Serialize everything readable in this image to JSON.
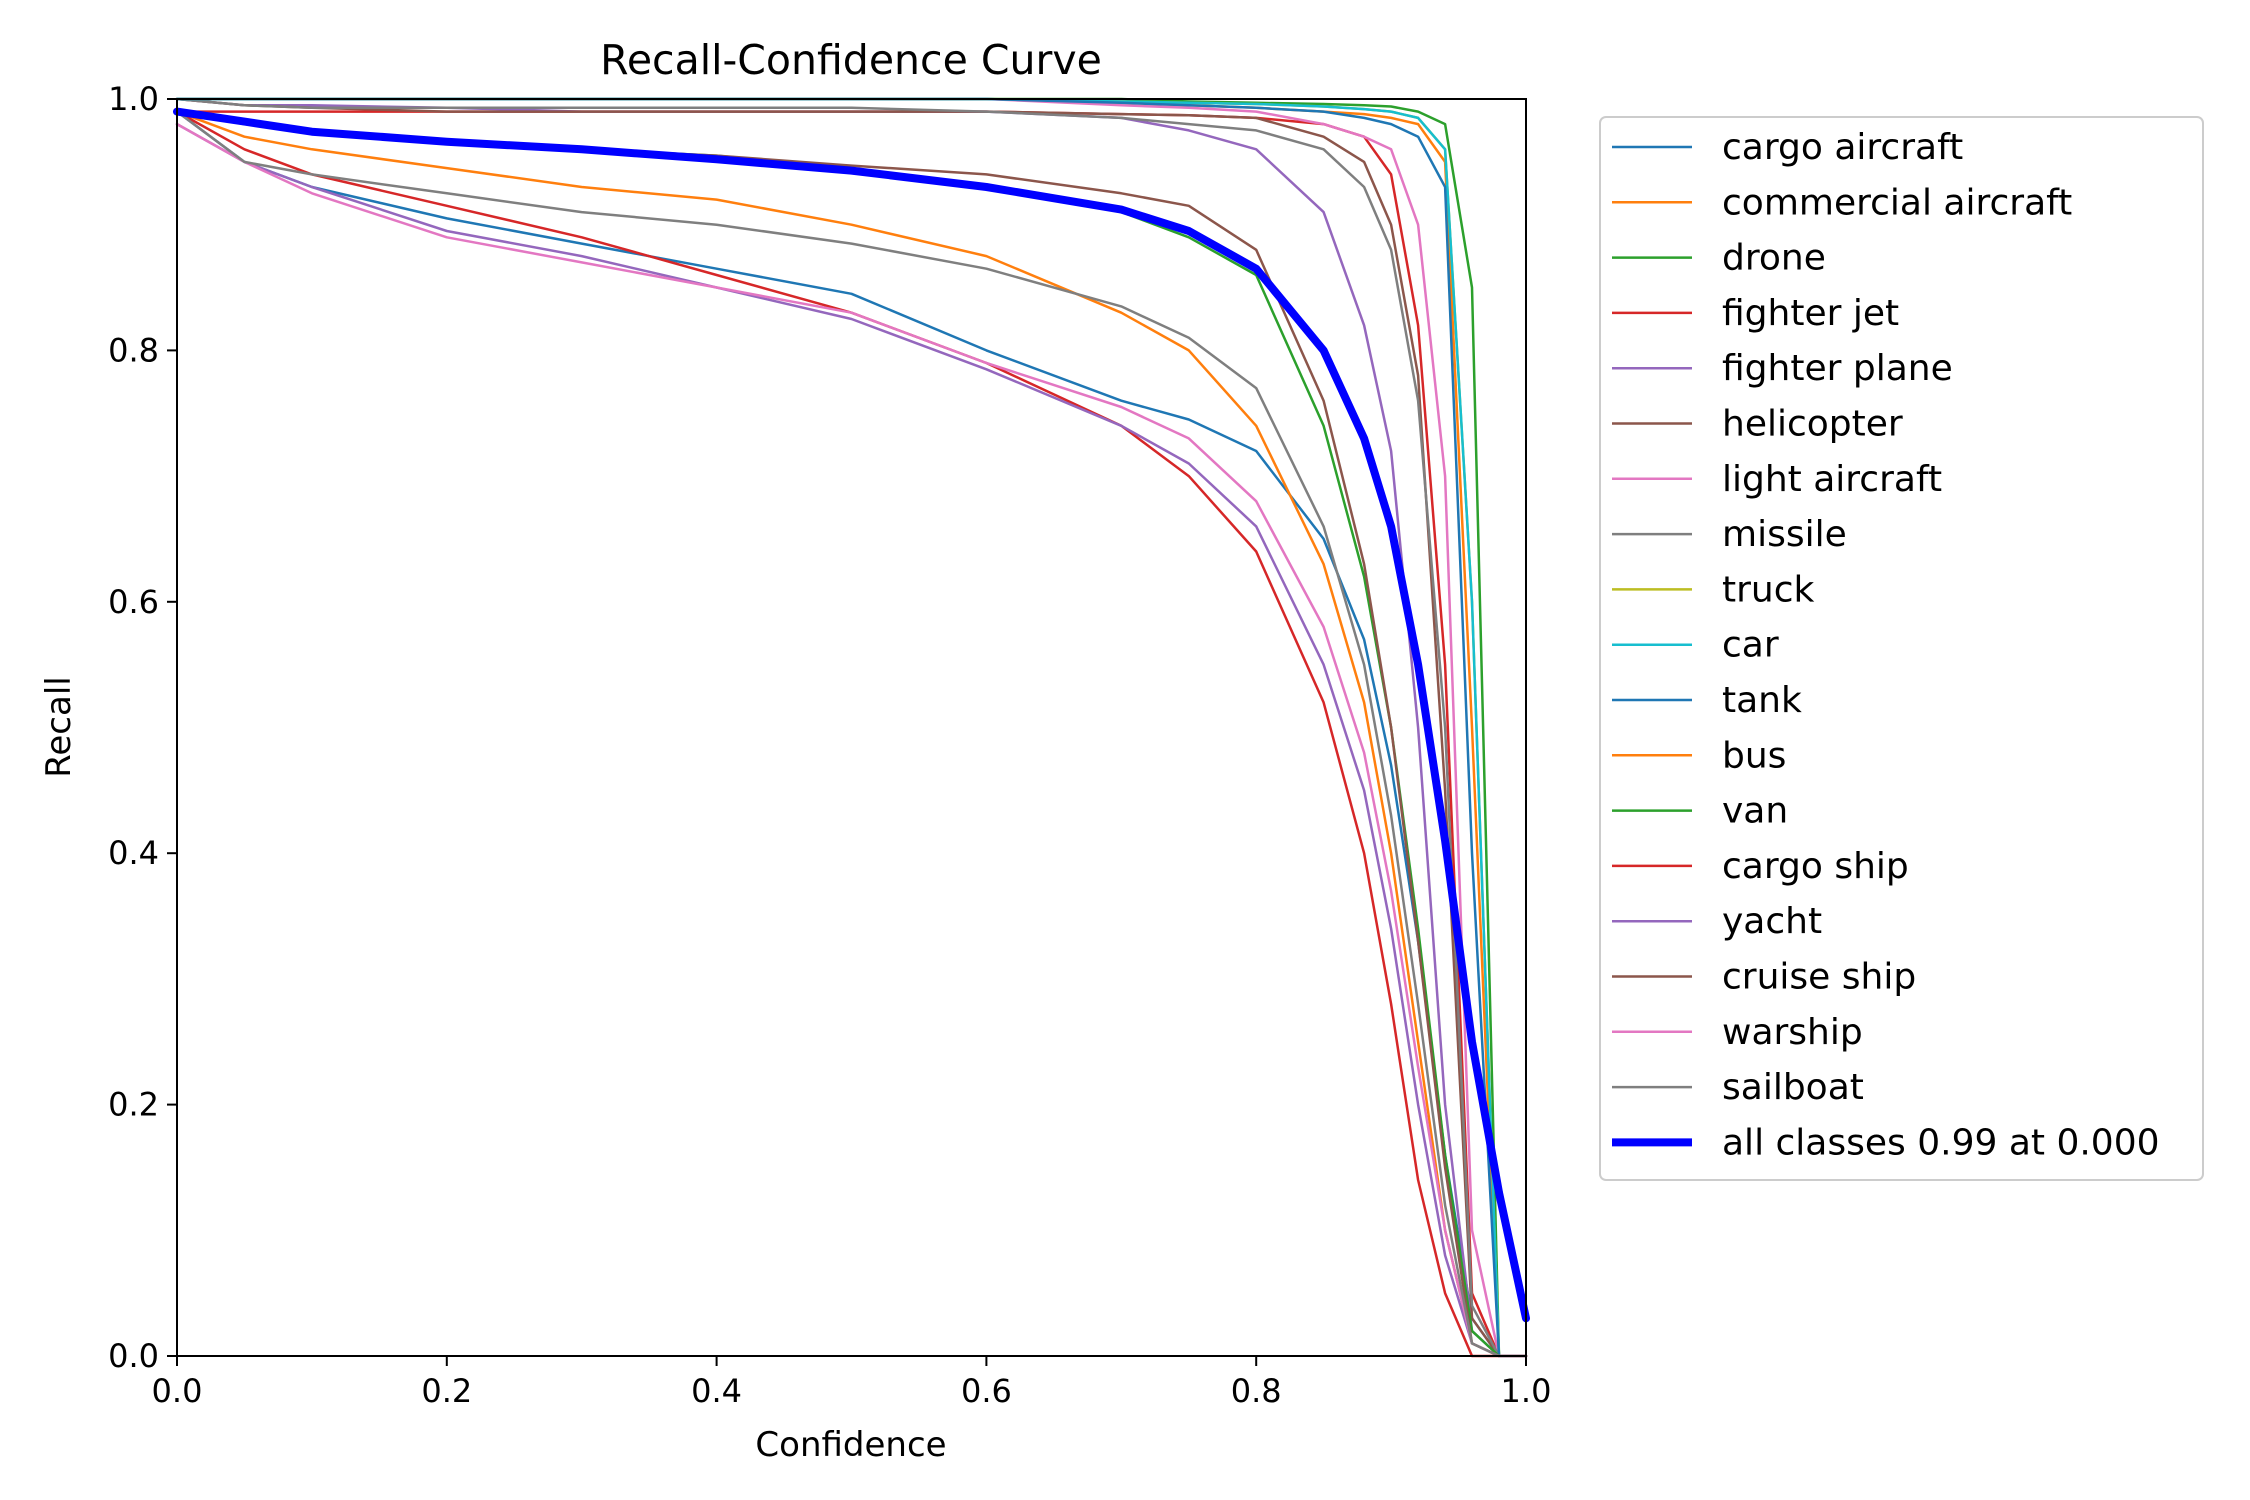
{
  "chart_data": {
    "type": "line",
    "title": "Recall-Confidence Curve",
    "xlabel": "Confidence",
    "ylabel": "Recall",
    "xlim": [
      0,
      1
    ],
    "ylim": [
      0,
      1
    ],
    "xticks": [
      "0.0",
      "0.2",
      "0.4",
      "0.6",
      "0.8",
      "1.0"
    ],
    "yticks": [
      "0.0",
      "0.2",
      "0.4",
      "0.6",
      "0.8",
      "1.0"
    ],
    "grid": false,
    "legend_position": "outside-right",
    "x": [
      0.0,
      0.05,
      0.1,
      0.2,
      0.3,
      0.4,
      0.5,
      0.6,
      0.7,
      0.75,
      0.8,
      0.85,
      0.88,
      0.9,
      0.92,
      0.94,
      0.96,
      0.98,
      1.0
    ],
    "series": [
      {
        "name": "cargo aircraft",
        "color": "#1f77b4",
        "width": 2.5,
        "values": [
          0.99,
          0.95,
          0.93,
          0.905,
          0.885,
          0.865,
          0.845,
          0.8,
          0.76,
          0.745,
          0.72,
          0.65,
          0.57,
          0.47,
          0.33,
          0.16,
          0.03,
          0.0,
          0.0
        ]
      },
      {
        "name": "commercial aircraft",
        "color": "#ff7f0e",
        "width": 2.5,
        "values": [
          1.0,
          1.0,
          1.0,
          1.0,
          1.0,
          1.0,
          1.0,
          1.0,
          0.997,
          0.995,
          0.993,
          0.99,
          0.988,
          0.985,
          0.98,
          0.95,
          0.5,
          0.0,
          0.0
        ]
      },
      {
        "name": "drone",
        "color": "#2ca02c",
        "width": 2.5,
        "values": [
          1.0,
          1.0,
          1.0,
          1.0,
          1.0,
          1.0,
          1.0,
          1.0,
          1.0,
          0.998,
          0.997,
          0.996,
          0.995,
          0.994,
          0.99,
          0.98,
          0.85,
          0.0,
          0.0
        ]
      },
      {
        "name": "fighter jet",
        "color": "#d62728",
        "width": 2.5,
        "values": [
          0.99,
          0.99,
          0.99,
          0.99,
          0.99,
          0.99,
          0.99,
          0.99,
          0.988,
          0.987,
          0.985,
          0.98,
          0.97,
          0.94,
          0.82,
          0.55,
          0.05,
          0.0,
          0.0
        ]
      },
      {
        "name": "fighter plane",
        "color": "#9467bd",
        "width": 2.5,
        "values": [
          1.0,
          0.995,
          0.995,
          0.993,
          0.99,
          0.99,
          0.99,
          0.99,
          0.985,
          0.975,
          0.96,
          0.91,
          0.82,
          0.72,
          0.5,
          0.2,
          0.02,
          0.0,
          0.0
        ]
      },
      {
        "name": "helicopter",
        "color": "#8c564b",
        "width": 2.5,
        "values": [
          1.0,
          0.995,
          0.993,
          0.99,
          0.99,
          0.99,
          0.99,
          0.99,
          0.988,
          0.987,
          0.985,
          0.97,
          0.95,
          0.9,
          0.78,
          0.45,
          0.03,
          0.0,
          0.0
        ]
      },
      {
        "name": "light aircraft",
        "color": "#e377c2",
        "width": 2.5,
        "values": [
          1.0,
          1.0,
          1.0,
          1.0,
          1.0,
          1.0,
          1.0,
          1.0,
          0.995,
          0.993,
          0.99,
          0.98,
          0.97,
          0.96,
          0.9,
          0.7,
          0.1,
          0.0,
          0.0
        ]
      },
      {
        "name": "missile",
        "color": "#7f7f7f",
        "width": 2.5,
        "values": [
          1.0,
          0.995,
          0.993,
          0.993,
          0.993,
          0.993,
          0.993,
          0.99,
          0.985,
          0.98,
          0.975,
          0.96,
          0.93,
          0.88,
          0.76,
          0.5,
          0.04,
          0.0,
          0.0
        ]
      },
      {
        "name": "truck",
        "color": "#bcbd22",
        "width": 2.5,
        "values": [
          1.0,
          1.0,
          1.0,
          1.0,
          1.0,
          1.0,
          1.0,
          1.0,
          0.998,
          0.997,
          0.996,
          0.994,
          0.992,
          0.99,
          0.985,
          0.96,
          0.6,
          0.0,
          0.0
        ]
      },
      {
        "name": "car",
        "color": "#17becf",
        "width": 2.5,
        "values": [
          1.0,
          1.0,
          1.0,
          1.0,
          1.0,
          1.0,
          1.0,
          1.0,
          0.998,
          0.997,
          0.996,
          0.994,
          0.992,
          0.99,
          0.985,
          0.96,
          0.6,
          0.0,
          0.0
        ]
      },
      {
        "name": "tank",
        "color": "#1f77b4",
        "width": 2.5,
        "values": [
          1.0,
          1.0,
          1.0,
          1.0,
          1.0,
          1.0,
          1.0,
          1.0,
          0.997,
          0.995,
          0.993,
          0.99,
          0.985,
          0.98,
          0.97,
          0.93,
          0.4,
          0.0,
          0.0
        ]
      },
      {
        "name": "bus",
        "color": "#ff7f0e",
        "width": 2.5,
        "values": [
          0.99,
          0.97,
          0.96,
          0.945,
          0.93,
          0.92,
          0.9,
          0.875,
          0.83,
          0.8,
          0.74,
          0.63,
          0.52,
          0.4,
          0.25,
          0.1,
          0.01,
          0.0,
          0.0
        ]
      },
      {
        "name": "van",
        "color": "#2ca02c",
        "width": 2.5,
        "values": [
          0.99,
          0.98,
          0.975,
          0.967,
          0.96,
          0.955,
          0.945,
          0.93,
          0.91,
          0.89,
          0.86,
          0.74,
          0.62,
          0.5,
          0.34,
          0.16,
          0.02,
          0.0,
          0.0
        ]
      },
      {
        "name": "cargo ship",
        "color": "#d62728",
        "width": 2.5,
        "values": [
          0.99,
          0.96,
          0.94,
          0.915,
          0.89,
          0.86,
          0.83,
          0.79,
          0.74,
          0.7,
          0.64,
          0.52,
          0.4,
          0.28,
          0.14,
          0.05,
          0.0,
          0.0,
          0.0
        ]
      },
      {
        "name": "yacht",
        "color": "#9467bd",
        "width": 2.5,
        "values": [
          0.98,
          0.95,
          0.93,
          0.895,
          0.875,
          0.85,
          0.825,
          0.785,
          0.74,
          0.71,
          0.66,
          0.55,
          0.45,
          0.34,
          0.2,
          0.08,
          0.01,
          0.0,
          0.0
        ]
      },
      {
        "name": "cruise ship",
        "color": "#8c564b",
        "width": 2.5,
        "values": [
          0.99,
          0.98,
          0.975,
          0.967,
          0.96,
          0.955,
          0.947,
          0.94,
          0.925,
          0.915,
          0.88,
          0.76,
          0.63,
          0.5,
          0.33,
          0.15,
          0.01,
          0.0,
          0.0
        ]
      },
      {
        "name": "warship",
        "color": "#e377c2",
        "width": 2.5,
        "values": [
          0.98,
          0.95,
          0.925,
          0.89,
          0.87,
          0.85,
          0.83,
          0.79,
          0.755,
          0.73,
          0.68,
          0.58,
          0.48,
          0.37,
          0.23,
          0.1,
          0.01,
          0.0,
          0.0
        ]
      },
      {
        "name": "sailboat",
        "color": "#7f7f7f",
        "width": 2.5,
        "values": [
          0.99,
          0.95,
          0.94,
          0.925,
          0.91,
          0.9,
          0.885,
          0.865,
          0.835,
          0.81,
          0.77,
          0.66,
          0.55,
          0.43,
          0.28,
          0.12,
          0.01,
          0.0,
          0.0
        ]
      },
      {
        "name": "all classes 0.99 at 0.000",
        "color": "#0000ff",
        "width": 8,
        "values": [
          0.99,
          0.982,
          0.974,
          0.966,
          0.96,
          0.952,
          0.943,
          0.93,
          0.912,
          0.895,
          0.865,
          0.8,
          0.73,
          0.66,
          0.55,
          0.41,
          0.25,
          0.13,
          0.03
        ]
      }
    ]
  }
}
